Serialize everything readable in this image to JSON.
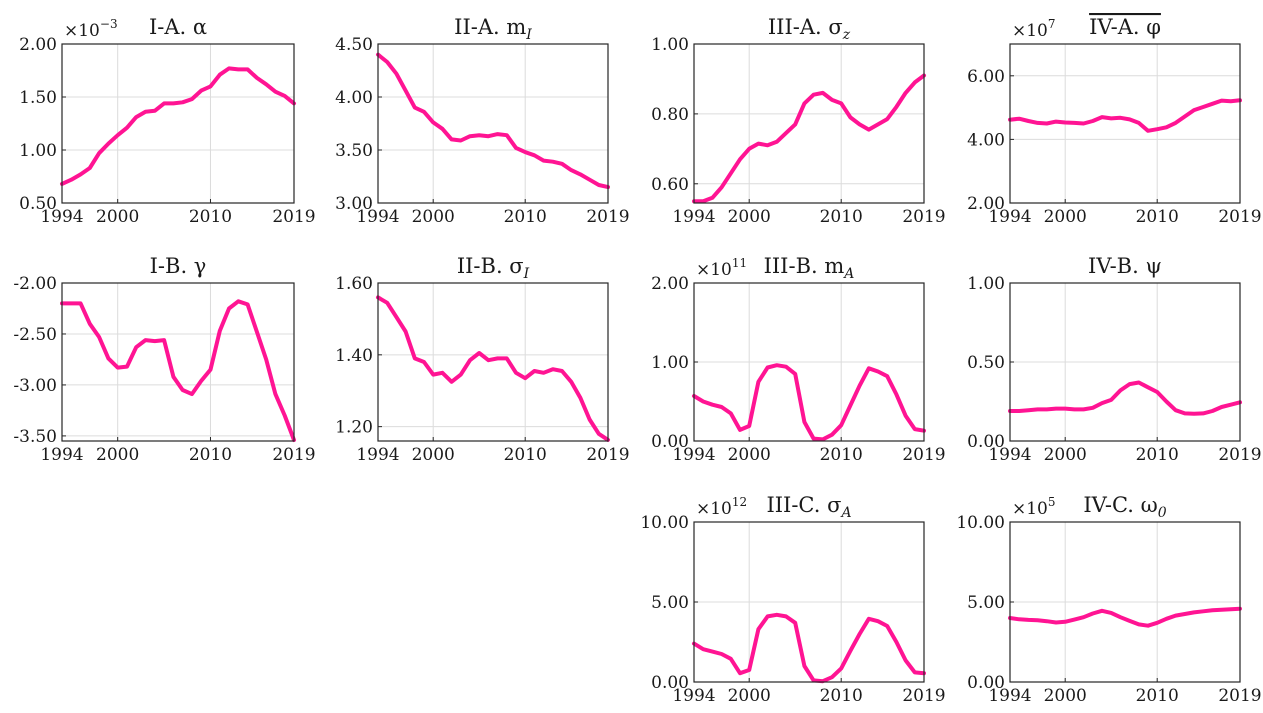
{
  "style": {
    "line_color": "#ff1493",
    "grid": true
  },
  "chart_data": [
    {
      "id": "I-A",
      "type": "line",
      "title": "I-A. α",
      "multiplier": "×10",
      "multiplier_exp": "−3",
      "xlim": [
        1994,
        2019
      ],
      "ylim": [
        0.5,
        2.0
      ],
      "xticks": [
        1994,
        2000,
        2010,
        2019
      ],
      "yticks": [
        0.5,
        1.0,
        1.5,
        2.0
      ],
      "ytick_labels": [
        "0.50",
        "1.00",
        "1.50",
        "2.00"
      ],
      "x": [
        1994,
        1995,
        1996,
        1997,
        1998,
        1999,
        2000,
        2001,
        2002,
        2003,
        2004,
        2005,
        2006,
        2007,
        2008,
        2009,
        2010,
        2011,
        2012,
        2013,
        2014,
        2015,
        2016,
        2017,
        2018,
        2019
      ],
      "y": [
        0.68,
        0.72,
        0.77,
        0.83,
        0.97,
        1.06,
        1.14,
        1.21,
        1.31,
        1.36,
        1.37,
        1.44,
        1.44,
        1.45,
        1.48,
        1.56,
        1.6,
        1.71,
        1.77,
        1.76,
        1.76,
        1.68,
        1.62,
        1.55,
        1.51,
        1.44
      ]
    },
    {
      "id": "II-A",
      "type": "line",
      "title": "II-A. m",
      "title_sub": "I",
      "xlim": [
        1994,
        2019
      ],
      "ylim": [
        3.0,
        4.5
      ],
      "xticks": [
        1994,
        2000,
        2010,
        2019
      ],
      "yticks": [
        3.0,
        3.5,
        4.0,
        4.5
      ],
      "ytick_labels": [
        "3.00",
        "3.50",
        "4.00",
        "4.50"
      ],
      "x": [
        1994,
        1995,
        1996,
        1997,
        1998,
        1999,
        2000,
        2001,
        2002,
        2003,
        2004,
        2005,
        2006,
        2007,
        2008,
        2009,
        2010,
        2011,
        2012,
        2013,
        2014,
        2015,
        2016,
        2017,
        2018,
        2019
      ],
      "y": [
        4.4,
        4.33,
        4.22,
        4.06,
        3.9,
        3.86,
        3.76,
        3.7,
        3.6,
        3.59,
        3.63,
        3.64,
        3.63,
        3.65,
        3.64,
        3.52,
        3.48,
        3.45,
        3.4,
        3.39,
        3.37,
        3.31,
        3.27,
        3.22,
        3.17,
        3.15
      ]
    },
    {
      "id": "III-A",
      "type": "line",
      "title": "III-A. σ",
      "title_sub": "z",
      "xlim": [
        1994,
        2019
      ],
      "ylim": [
        0.545,
        1.0
      ],
      "xticks": [
        1994,
        2000,
        2010,
        2019
      ],
      "yticks": [
        0.6,
        0.8,
        1.0
      ],
      "ytick_labels": [
        "0.60",
        "0.80",
        "1.00"
      ],
      "x": [
        1994,
        1995,
        1996,
        1997,
        1998,
        1999,
        2000,
        2001,
        2002,
        2003,
        2004,
        2005,
        2006,
        2007,
        2008,
        2009,
        2010,
        2011,
        2012,
        2013,
        2014,
        2015,
        2016,
        2017,
        2018,
        2019
      ],
      "y": [
        0.55,
        0.55,
        0.56,
        0.59,
        0.63,
        0.67,
        0.7,
        0.715,
        0.71,
        0.72,
        0.745,
        0.77,
        0.83,
        0.855,
        0.86,
        0.84,
        0.83,
        0.79,
        0.77,
        0.755,
        0.77,
        0.785,
        0.82,
        0.86,
        0.89,
        0.91
      ]
    },
    {
      "id": "IV-A",
      "type": "line",
      "title": "IV-A. φ",
      "title_overline": true,
      "multiplier": "×10",
      "multiplier_exp": "7",
      "xlim": [
        1994,
        2019
      ],
      "ylim": [
        2.0,
        7.0
      ],
      "xticks": [
        1994,
        2000,
        2010,
        2019
      ],
      "yticks": [
        2.0,
        4.0,
        6.0
      ],
      "ytick_labels": [
        "2.00",
        "4.00",
        "6.00"
      ],
      "x": [
        1994,
        1995,
        1996,
        1997,
        1998,
        1999,
        2000,
        2001,
        2002,
        2003,
        2004,
        2005,
        2006,
        2007,
        2008,
        2009,
        2010,
        2011,
        2012,
        2013,
        2014,
        2015,
        2016,
        2017,
        2018,
        2019
      ],
      "y": [
        4.62,
        4.65,
        4.58,
        4.52,
        4.5,
        4.56,
        4.53,
        4.52,
        4.5,
        4.58,
        4.7,
        4.66,
        4.68,
        4.63,
        4.52,
        4.27,
        4.32,
        4.38,
        4.52,
        4.72,
        4.92,
        5.02,
        5.12,
        5.22,
        5.2,
        5.23
      ]
    },
    {
      "id": "I-B",
      "type": "line",
      "title": "I-B. γ",
      "xlim": [
        1994,
        2019
      ],
      "ylim": [
        -3.55,
        -2.0
      ],
      "xticks": [
        1994,
        2000,
        2010,
        2019
      ],
      "yticks": [
        -3.5,
        -3.0,
        -2.5,
        -2.0
      ],
      "ytick_labels": [
        "-3.50",
        "-3.00",
        "-2.50",
        "-2.00"
      ],
      "x": [
        1994,
        1995,
        1996,
        1997,
        1998,
        1999,
        2000,
        2001,
        2002,
        2003,
        2004,
        2005,
        2006,
        2007,
        2008,
        2009,
        2010,
        2011,
        2012,
        2013,
        2014,
        2015,
        2016,
        2017,
        2018,
        2019
      ],
      "y": [
        -2.2,
        -2.2,
        -2.2,
        -2.4,
        -2.53,
        -2.74,
        -2.83,
        -2.82,
        -2.63,
        -2.56,
        -2.57,
        -2.56,
        -2.92,
        -3.05,
        -3.09,
        -2.96,
        -2.85,
        -2.47,
        -2.25,
        -2.18,
        -2.21,
        -2.48,
        -2.75,
        -3.09,
        -3.3,
        -3.54
      ]
    },
    {
      "id": "II-B",
      "type": "line",
      "title": "II-B. σ",
      "title_sub": "I",
      "xlim": [
        1994,
        2019
      ],
      "ylim": [
        1.16,
        1.6
      ],
      "xticks": [
        1994,
        2000,
        2010,
        2019
      ],
      "yticks": [
        1.2,
        1.4,
        1.6
      ],
      "ytick_labels": [
        "1.20",
        "1.40",
        "1.60"
      ],
      "x": [
        1994,
        1995,
        1996,
        1997,
        1998,
        1999,
        2000,
        2001,
        2002,
        2003,
        2004,
        2005,
        2006,
        2007,
        2008,
        2009,
        2010,
        2011,
        2012,
        2013,
        2014,
        2015,
        2016,
        2017,
        2018,
        2019
      ],
      "y": [
        1.56,
        1.545,
        1.505,
        1.465,
        1.39,
        1.38,
        1.345,
        1.35,
        1.325,
        1.345,
        1.385,
        1.405,
        1.385,
        1.39,
        1.39,
        1.35,
        1.335,
        1.355,
        1.35,
        1.36,
        1.355,
        1.325,
        1.28,
        1.22,
        1.18,
        1.163
      ]
    },
    {
      "id": "III-B",
      "type": "line",
      "title": "III-B. m",
      "title_sub": "A",
      "multiplier": "×10",
      "multiplier_exp": "11",
      "xlim": [
        1994,
        2019
      ],
      "ylim": [
        0.0,
        2.0
      ],
      "xticks": [
        1994,
        2000,
        2010,
        2019
      ],
      "yticks": [
        0.0,
        1.0,
        2.0
      ],
      "ytick_labels": [
        "0.00",
        "1.00",
        "2.00"
      ],
      "x": [
        1994,
        1995,
        1996,
        1997,
        1998,
        1999,
        2000,
        2001,
        2002,
        2003,
        2004,
        2005,
        2006,
        2007,
        2008,
        2009,
        2010,
        2011,
        2012,
        2013,
        2014,
        2015,
        2016,
        2017,
        2018,
        2019
      ],
      "y": [
        0.57,
        0.5,
        0.46,
        0.43,
        0.35,
        0.14,
        0.19,
        0.75,
        0.93,
        0.96,
        0.94,
        0.85,
        0.24,
        0.03,
        0.02,
        0.08,
        0.2,
        0.45,
        0.7,
        0.92,
        0.88,
        0.82,
        0.59,
        0.32,
        0.15,
        0.13
      ]
    },
    {
      "id": "IV-B",
      "type": "line",
      "title": "IV-B. ψ",
      "xlim": [
        1994,
        2019
      ],
      "ylim": [
        0.0,
        1.0
      ],
      "xticks": [
        1994,
        2000,
        2010,
        2019
      ],
      "yticks": [
        0.0,
        0.5,
        1.0
      ],
      "ytick_labels": [
        "0.00",
        "0.50",
        "1.00"
      ],
      "x": [
        1994,
        1995,
        1996,
        1997,
        1998,
        1999,
        2000,
        2001,
        2002,
        2003,
        2004,
        2005,
        2006,
        2007,
        2008,
        2009,
        2010,
        2011,
        2012,
        2013,
        2014,
        2015,
        2016,
        2017,
        2018,
        2019
      ],
      "y": [
        0.19,
        0.19,
        0.195,
        0.2,
        0.2,
        0.205,
        0.205,
        0.2,
        0.2,
        0.21,
        0.24,
        0.26,
        0.32,
        0.36,
        0.37,
        0.34,
        0.31,
        0.25,
        0.195,
        0.175,
        0.172,
        0.175,
        0.19,
        0.215,
        0.23,
        0.245
      ]
    },
    {
      "id": "III-C",
      "type": "line",
      "title": "III-C. σ",
      "title_sub": "A",
      "multiplier": "×10",
      "multiplier_exp": "12",
      "xlim": [
        1994,
        2019
      ],
      "ylim": [
        0.0,
        10.0
      ],
      "xticks": [
        1994,
        2000,
        2010,
        2019
      ],
      "yticks": [
        0.0,
        5.0,
        10.0
      ],
      "ytick_labels": [
        "0.00",
        "5.00",
        "10.00"
      ],
      "x": [
        1994,
        1995,
        1996,
        1997,
        1998,
        1999,
        2000,
        2001,
        2002,
        2003,
        2004,
        2005,
        2006,
        2007,
        2008,
        2009,
        2010,
        2011,
        2012,
        2013,
        2014,
        2015,
        2016,
        2017,
        2018,
        2019
      ],
      "y": [
        2.4,
        2.05,
        1.9,
        1.75,
        1.45,
        0.55,
        0.75,
        3.3,
        4.1,
        4.2,
        4.1,
        3.7,
        1.0,
        0.1,
        0.05,
        0.3,
        0.85,
        1.95,
        3.0,
        3.95,
        3.8,
        3.5,
        2.5,
        1.35,
        0.6,
        0.55
      ]
    },
    {
      "id": "IV-C",
      "type": "line",
      "title": "IV-C. ω",
      "title_sub": "0",
      "multiplier": "×10",
      "multiplier_exp": "5",
      "xlim": [
        1994,
        2019
      ],
      "ylim": [
        0.0,
        10.0
      ],
      "xticks": [
        1994,
        2000,
        2010,
        2019
      ],
      "yticks": [
        0.0,
        5.0,
        10.0
      ],
      "ytick_labels": [
        "0.00",
        "5.00",
        "10.00"
      ],
      "x": [
        1994,
        1995,
        1996,
        1997,
        1998,
        1999,
        2000,
        2001,
        2002,
        2003,
        2004,
        2005,
        2006,
        2007,
        2008,
        2009,
        2010,
        2011,
        2012,
        2013,
        2014,
        2015,
        2016,
        2017,
        2018,
        2019
      ],
      "y": [
        4.0,
        3.92,
        3.88,
        3.86,
        3.8,
        3.72,
        3.76,
        3.9,
        4.05,
        4.28,
        4.45,
        4.32,
        4.05,
        3.82,
        3.6,
        3.52,
        3.7,
        3.95,
        4.15,
        4.25,
        4.35,
        4.42,
        4.48,
        4.52,
        4.55,
        4.58
      ]
    }
  ]
}
